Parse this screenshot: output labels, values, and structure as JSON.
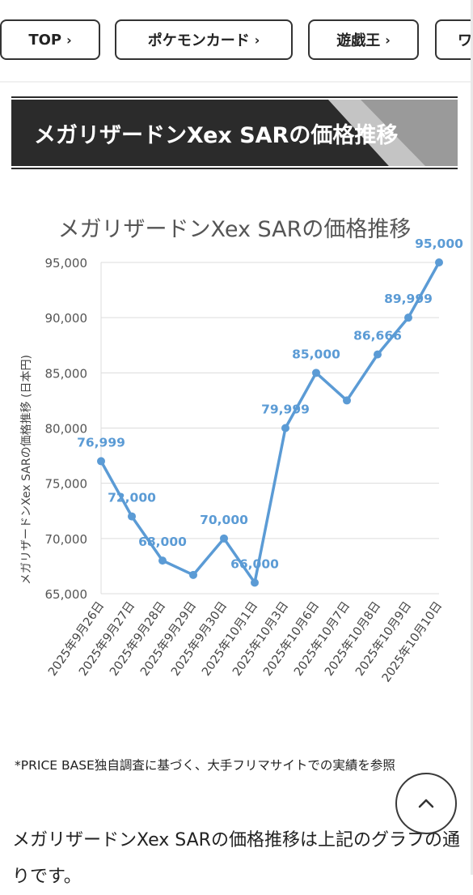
{
  "nav": {
    "items": [
      {
        "label": "TOP"
      },
      {
        "label": "ポケモンカード"
      },
      {
        "label": "遊戯王"
      },
      {
        "label": "ワ"
      }
    ],
    "chevron": "›"
  },
  "heading": {
    "title": "メガリザードンXex SARの価格推移"
  },
  "chart_data": {
    "type": "line",
    "title": "メガリザードンXex SARの価格推移",
    "xlabel": "",
    "ylabel": "メガリザードンXex SARの価格推移 (日本円)",
    "categories": [
      "2025年9月26日",
      "2025年9月27日",
      "2025年9月28日",
      "2025年9月29日",
      "2025年9月30日",
      "2025年10月1日",
      "2025年10月3日",
      "2025年10月6日",
      "2025年10月7日",
      "2025年10月8日",
      "2025年10月9日",
      "2025年10月10日"
    ],
    "values": [
      76999,
      72000,
      68000,
      66700,
      70000,
      66000,
      79999,
      85000,
      82500,
      86666,
      89999,
      95000
    ],
    "data_labels": [
      "76,999",
      "72,000",
      "68,000",
      "",
      "70,000",
      "66,000",
      "79,999",
      "85,000",
      "",
      "86,666",
      "89,999",
      "95,000"
    ],
    "yticks": [
      "95,000",
      "90,000",
      "85,000",
      "80,000",
      "75,000",
      "70,000",
      "65,000"
    ],
    "ytick_values": [
      95000,
      90000,
      85000,
      80000,
      75000,
      70000,
      65000
    ],
    "ylim": [
      65000,
      95000
    ],
    "grid": true,
    "color": "#5b9bd5",
    "label_color": "#5b9bd5"
  },
  "note": "*PRICE BASE独自調査に基づく、大手フリマサイトでの実績を参照",
  "body_text": "メガリザードンXex SARの価格推移は上記のグラフの通りです。",
  "to_top": {
    "icon": "chevron-up-icon"
  }
}
